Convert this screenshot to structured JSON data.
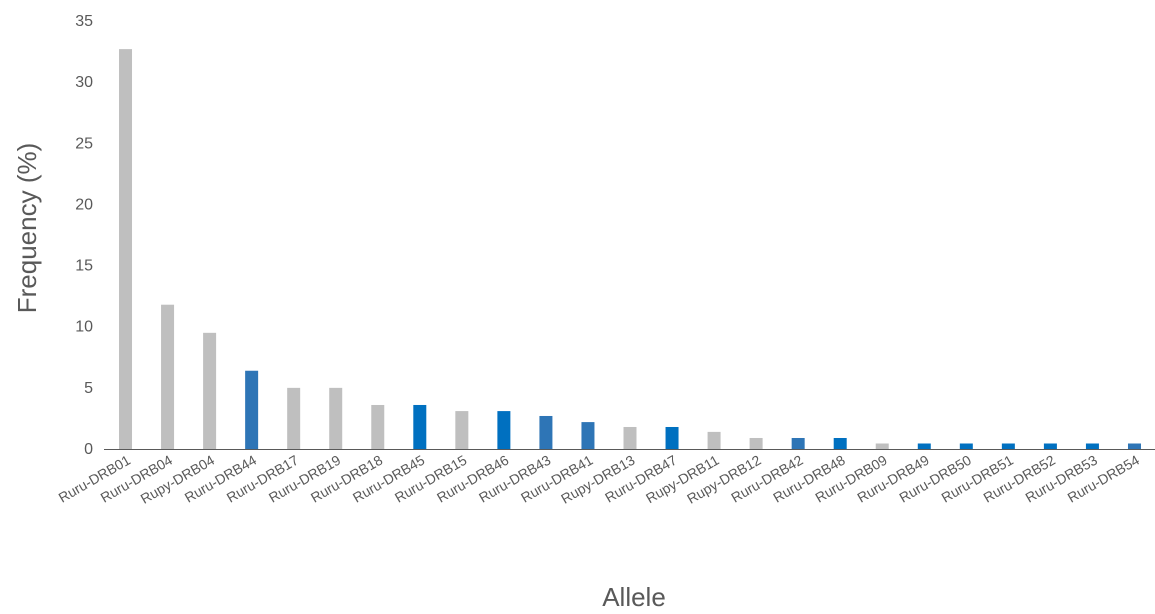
{
  "chart_data": {
    "type": "bar",
    "title": "",
    "xlabel": "Allele",
    "ylabel": "Frequency (%)",
    "ylim": [
      0,
      35
    ],
    "yticks": [
      0,
      5,
      10,
      15,
      20,
      25,
      30,
      35
    ],
    "grid": false,
    "legend": "none",
    "categories": [
      "Ruru-DRB01",
      "Ruru-DRB04",
      "Rupy-DRB04",
      "Ruru-DRB44",
      "Ruru-DRB17",
      "Ruru-DRB19",
      "Ruru-DRB18",
      "Ruru-DRB45",
      "Ruru-DRB15",
      "Ruru-DRB46",
      "Ruru-DRB43",
      "Ruru-DRB41",
      "Rupy-DRB13",
      "Ruru-DRB47",
      "Rupy-DRB11",
      "Rupy-DRB12",
      "Ruru-DRB42",
      "Ruru-DRB48",
      "Ruru-DRB09",
      "Ruru-DRB49",
      "Ruru-DRB50",
      "Ruru-DRB51",
      "Ruru-DRB52",
      "Ruru-DRB53",
      "Ruru-DRB54"
    ],
    "values": [
      32.7,
      11.8,
      9.5,
      6.4,
      5.0,
      5.0,
      3.6,
      3.6,
      3.1,
      3.1,
      2.7,
      2.2,
      1.8,
      1.8,
      1.4,
      0.9,
      0.9,
      0.9,
      0.45,
      0.45,
      0.45,
      0.45,
      0.45,
      0.45,
      0.45
    ],
    "bar_colors": [
      "#bfbfbf",
      "#bfbfbf",
      "#bfbfbf",
      "#2e75b6",
      "#bfbfbf",
      "#bfbfbf",
      "#bfbfbf",
      "#0070c0",
      "#bfbfbf",
      "#0070c0",
      "#2e75b6",
      "#2e75b6",
      "#bfbfbf",
      "#0070c0",
      "#bfbfbf",
      "#bfbfbf",
      "#2e75b6",
      "#0070c0",
      "#bfbfbf",
      "#0070c0",
      "#0070c0",
      "#0070c0",
      "#0070c0",
      "#0070c0",
      "#2e75b6"
    ]
  },
  "colors": {
    "axis": "#595959",
    "gray_bar": "#bfbfbf",
    "blue_bar": "#2e75b6",
    "blue_bar_bright": "#0070c0"
  }
}
